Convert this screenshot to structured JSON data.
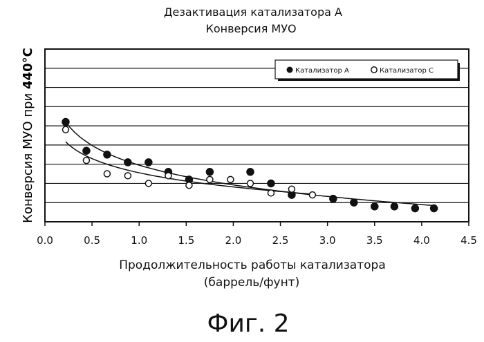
{
  "chart_data": {
    "type": "scatter",
    "title": [
      "Дезактивация катализатора А",
      "Конверсия МУО"
    ],
    "xlabel": [
      "Продолжительность работы катализатора",
      "(баррель/фунт)"
    ],
    "ylabel": {
      "prefix": "Конверсия МУО при ",
      "emphasis": "440°С"
    },
    "xlim": [
      0.0,
      4.5
    ],
    "x_ticks": [
      "0.0",
      "0.5",
      "1.0",
      "1.5",
      "2.0",
      "2.5",
      "3.0",
      "3.5",
      "4.0",
      "4.5"
    ],
    "ylim": [
      0,
      9
    ],
    "y_ticks_shown": false,
    "grid": "horizontal",
    "legend_position": "top-right",
    "series": [
      {
        "name": "Катализатор А",
        "marker": "filled-circle",
        "x": [
          0.22,
          0.44,
          0.66,
          0.88,
          1.1,
          1.31,
          1.53,
          1.75,
          2.18,
          2.4,
          2.62,
          3.06,
          3.28,
          3.5,
          3.71,
          3.93,
          4.13
        ],
        "y": [
          5.2,
          3.7,
          3.5,
          3.1,
          3.1,
          2.6,
          2.2,
          2.6,
          2.6,
          2.0,
          1.4,
          1.2,
          1.0,
          0.8,
          0.8,
          0.7,
          0.7
        ]
      },
      {
        "name": "Катализатор С",
        "marker": "open-circle",
        "x": [
          0.22,
          0.44,
          0.66,
          0.88,
          1.1,
          1.31,
          1.53,
          1.75,
          1.97,
          2.18,
          2.4,
          2.62,
          2.84
        ],
        "y": [
          4.8,
          3.2,
          2.5,
          2.4,
          2.0,
          2.4,
          1.9,
          2.2,
          2.2,
          2.0,
          1.5,
          1.7,
          1.4
        ]
      }
    ],
    "trendlines": [
      {
        "series": "Катализатор А",
        "kind": "curve"
      },
      {
        "series": "Катализатор С",
        "kind": "curve"
      }
    ]
  },
  "figure_caption": "Фиг. 2"
}
